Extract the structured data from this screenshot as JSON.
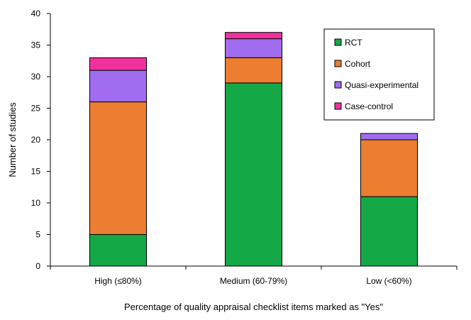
{
  "chart_data": {
    "type": "bar",
    "stacked": true,
    "categories": [
      "High (≤80%)",
      "Medium (60-79%)",
      "Low (<60%)"
    ],
    "series": [
      {
        "name": "RCT",
        "values": [
          5,
          29,
          11
        ],
        "color": "#14A846"
      },
      {
        "name": "Cohort",
        "values": [
          21,
          4,
          9
        ],
        "color": "#ED7D31"
      },
      {
        "name": "Quasi-experimental",
        "values": [
          5,
          3,
          1
        ],
        "color": "#A06CF0"
      },
      {
        "name": "Case-control",
        "values": [
          2,
          1,
          0
        ],
        "color": "#F0319E"
      }
    ],
    "title": "",
    "xlabel": "Percentage of quality appraisal checklist items marked as \"Yes\"",
    "ylabel": "Number of studies",
    "ylim": [
      0,
      40
    ],
    "yticks": [
      0,
      5,
      10,
      15,
      20,
      25,
      30,
      35,
      40
    ],
    "grid": false,
    "legend_position": "top-right"
  }
}
